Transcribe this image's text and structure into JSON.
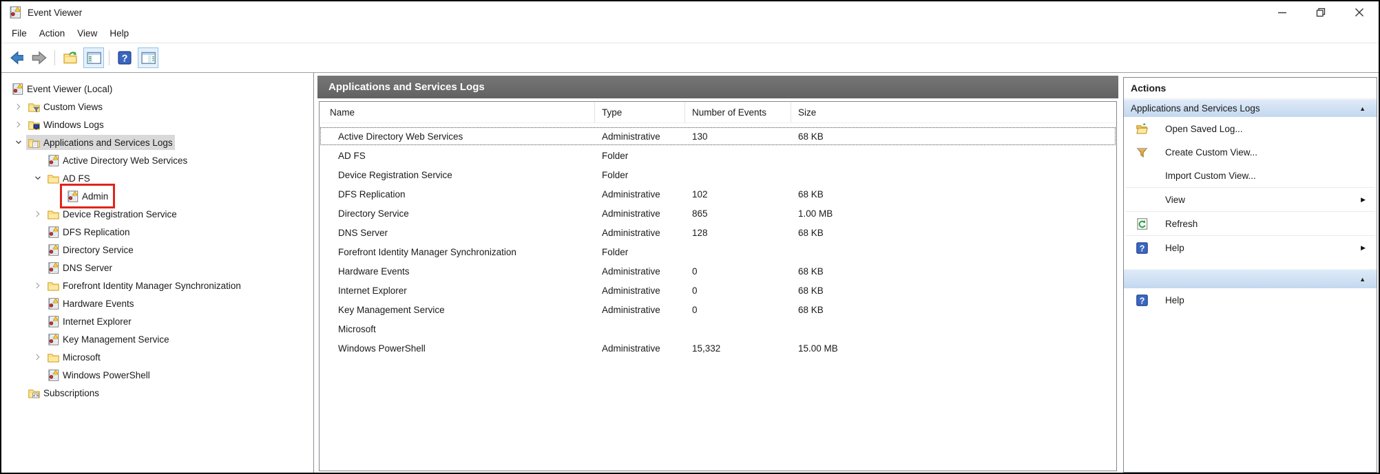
{
  "colors": {
    "header_bar_top": "#767676",
    "header_bar_bottom": "#626262",
    "header_text": "#ffffff",
    "section_bar_top": "#dfeaf8",
    "section_bar_bottom": "#c3d8ef",
    "selection": "#d9d9d9",
    "annotation": "#e0241a",
    "toolbar_selected": "#e4f1fb",
    "toolbar_selected_border": "#90c3e8",
    "divider": "#8f8f8f"
  },
  "titlebar": {
    "title": "Event Viewer",
    "app_icon": "event-viewer-icon",
    "controls": [
      "minimize",
      "restore",
      "close"
    ]
  },
  "menubar": {
    "items": [
      "File",
      "Action",
      "View",
      "Help"
    ]
  },
  "toolbar": {
    "buttons": [
      {
        "icon": "back"
      },
      {
        "icon": "forward"
      },
      {
        "sep": true
      },
      {
        "icon": "folder-open"
      },
      {
        "icon": "console-tree",
        "selected": true
      },
      {
        "sep": true
      },
      {
        "icon": "help"
      },
      {
        "icon": "action-pane",
        "selected": true
      }
    ]
  },
  "tree": {
    "items": [
      {
        "label": "Event Viewer (Local)",
        "level": 0,
        "chevron": null,
        "icon": "event-viewer"
      },
      {
        "label": "Custom Views",
        "level": 1,
        "chevron": "collapsed",
        "icon": "folder-filter"
      },
      {
        "label": "Windows Logs",
        "level": 1,
        "chevron": "collapsed",
        "icon": "folder-monitor"
      },
      {
        "label": "Applications and Services Logs",
        "level": 1,
        "chevron": "expanded",
        "icon": "folder-page",
        "selected": true
      },
      {
        "label": "Active Directory Web Services",
        "level": 2,
        "chevron": null,
        "icon": "log"
      },
      {
        "label": "AD FS",
        "level": 2,
        "chevron": "expanded",
        "icon": "folder"
      },
      {
        "label": "Admin",
        "level": 3,
        "chevron": null,
        "icon": "log",
        "annotated": true
      },
      {
        "label": "Device Registration Service",
        "level": 2,
        "chevron": "collapsed",
        "icon": "folder"
      },
      {
        "label": "DFS Replication",
        "level": 2,
        "chevron": null,
        "icon": "log"
      },
      {
        "label": "Directory Service",
        "level": 2,
        "chevron": null,
        "icon": "log"
      },
      {
        "label": "DNS Server",
        "level": 2,
        "chevron": null,
        "icon": "log"
      },
      {
        "label": "Forefront Identity Manager Synchronization",
        "level": 2,
        "chevron": "collapsed",
        "icon": "folder"
      },
      {
        "label": "Hardware Events",
        "level": 2,
        "chevron": null,
        "icon": "log"
      },
      {
        "label": "Internet Explorer",
        "level": 2,
        "chevron": null,
        "icon": "log"
      },
      {
        "label": "Key Management Service",
        "level": 2,
        "chevron": null,
        "icon": "log"
      },
      {
        "label": "Microsoft",
        "level": 2,
        "chevron": "collapsed",
        "icon": "folder"
      },
      {
        "label": "Windows PowerShell",
        "level": 2,
        "chevron": null,
        "icon": "log"
      },
      {
        "label": "Subscriptions",
        "level": 1,
        "chevron": null,
        "icon": "folder-subscriptions"
      }
    ]
  },
  "list": {
    "header": "Applications and Services Logs",
    "columns": [
      "Name",
      "Type",
      "Number of Events",
      "Size"
    ],
    "rows": [
      {
        "name": "Active Directory Web Services",
        "type": "Administrative",
        "events": "130",
        "size": "68 KB",
        "focused": true
      },
      {
        "name": "AD FS",
        "type": "Folder",
        "events": "",
        "size": ""
      },
      {
        "name": "Device Registration Service",
        "type": "Folder",
        "events": "",
        "size": ""
      },
      {
        "name": "DFS Replication",
        "type": "Administrative",
        "events": "102",
        "size": "68 KB"
      },
      {
        "name": "Directory Service",
        "type": "Administrative",
        "events": "865",
        "size": "1.00 MB"
      },
      {
        "name": "DNS Server",
        "type": "Administrative",
        "events": "128",
        "size": "68 KB"
      },
      {
        "name": "Forefront Identity Manager Synchronization",
        "type": "Folder",
        "events": "",
        "size": ""
      },
      {
        "name": "Hardware Events",
        "type": "Administrative",
        "events": "0",
        "size": "68 KB"
      },
      {
        "name": "Internet Explorer",
        "type": "Administrative",
        "events": "0",
        "size": "68 KB"
      },
      {
        "name": "Key Management Service",
        "type": "Administrative",
        "events": "0",
        "size": "68 KB"
      },
      {
        "name": "Microsoft",
        "type": "",
        "events": "",
        "size": ""
      },
      {
        "name": "Windows PowerShell",
        "type": "Administrative",
        "events": "15,332",
        "size": "15.00 MB"
      }
    ]
  },
  "actions": {
    "title": "Actions",
    "sections": [
      {
        "header": "Applications and Services Logs",
        "collapse_icon": "collapse-arrow",
        "items": [
          {
            "label": "Open Saved Log...",
            "icon": "folder-open-action"
          },
          {
            "label": "Create Custom View...",
            "icon": "funnel"
          },
          {
            "label": "Import Custom View...",
            "icon": null
          },
          {
            "label": "View",
            "icon": null,
            "arrow": true,
            "sep_before": true
          },
          {
            "label": "Refresh",
            "icon": "refresh",
            "sep_before": true
          },
          {
            "label": "Help",
            "icon": "help",
            "arrow": true,
            "sep_before": true
          }
        ]
      },
      {
        "header": "",
        "collapse_icon": "collapse-arrow",
        "items": [
          {
            "label": "Help",
            "icon": "help"
          }
        ]
      }
    ]
  }
}
